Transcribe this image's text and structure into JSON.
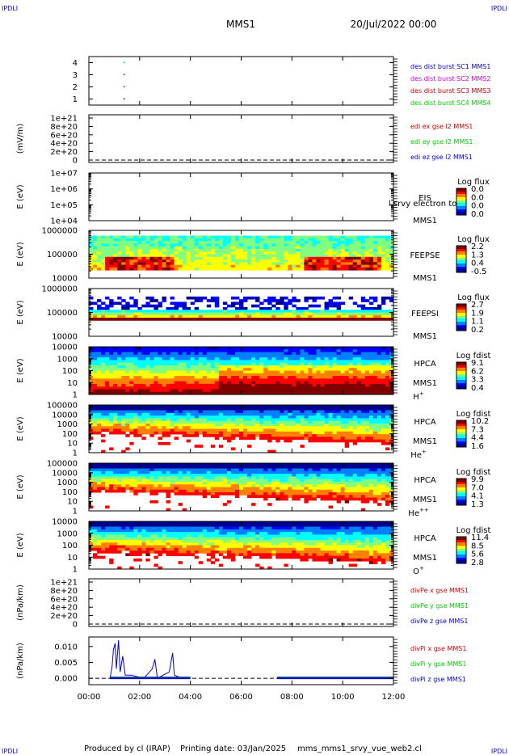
{
  "corner_marks": {
    "top_left": "IPDLI",
    "top_right": "IPDLI",
    "bottom_left": "IPDLI",
    "bottom_right": "IPDLI"
  },
  "header": {
    "mission": "MMS1",
    "date": "20/Jul/2022 00:00"
  },
  "footer": {
    "producer": "Produced by cl (IRAP)",
    "printing": "Printing date: 03/Jan/2025",
    "file": "mms_mms1_srvy_vue_web2.cl"
  },
  "colors": {
    "blue": "#0000cc",
    "magenta": "#cc00cc",
    "red": "#cc0000",
    "green": "#00cc00",
    "text": "#000000",
    "frame": "#000000"
  },
  "colormap": [
    "#00008f",
    "#0000ff",
    "#0080ff",
    "#00ffff",
    "#80ff80",
    "#ffff00",
    "#ff8000",
    "#ff0000",
    "#800000"
  ],
  "chart_data": {
    "type": "multi-panel time series (line + spectrogram)",
    "x": {
      "range": [
        "00:00",
        "12:00"
      ],
      "ticks": [
        "00:00",
        "02:00",
        "04:00",
        "06:00",
        "08:00",
        "10:00",
        "12:00"
      ]
    },
    "panels": [
      {
        "id": "burst",
        "type": "scatter",
        "ylabel": "",
        "yticks": [
          "4",
          "3",
          "2",
          "1"
        ],
        "ylim": [
          0.5,
          4.5
        ],
        "points": [
          {
            "t": "01:22",
            "y": 4,
            "color": "green"
          },
          {
            "t": "01:22",
            "y": 3,
            "color": "red"
          },
          {
            "t": "01:22",
            "y": 2,
            "color": "red"
          },
          {
            "t": "01:22",
            "y": 1,
            "color": "blue"
          }
        ],
        "legend": [
          {
            "text": "des dist burst SC1 MMS1",
            "color": "blue"
          },
          {
            "text": "des dist burst SC2 MMS2",
            "color": "magenta"
          },
          {
            "text": "des dist burst SC3 MMS3",
            "color": "red"
          },
          {
            "text": "des dist burst SC4 MMS4",
            "color": "green"
          }
        ]
      },
      {
        "id": "edi",
        "type": "line",
        "ylabel": "(mV/m)",
        "yticks": [
          "1e+21",
          "8e+20",
          "6e+20",
          "4e+20",
          "2e+20",
          "0"
        ],
        "ylim": [
          0,
          1e+21
        ],
        "zero_line": true,
        "legend": [
          {
            "text": "edi ex gse l2 MMS1",
            "color": "red"
          },
          {
            "text": "edi ey gse l2 MMS1",
            "color": "green"
          },
          {
            "text": "edi ez gse l2 MMS1",
            "color": "blue"
          }
        ]
      },
      {
        "id": "eis",
        "type": "heatmap",
        "ylabel": "E (eV)",
        "yticks": [
          "1e+07",
          "1e+06",
          "1e+05",
          "1e+04"
        ],
        "ylim": [
          10000.0,
          10000000.0
        ],
        "yscale": "log",
        "side_labels": [
          "EIS",
          "MMS1"
        ],
        "overlay_label": "l srvy electron to",
        "colorbar": {
          "title": "Log flux",
          "ticks": [
            "0.0",
            "0.0",
            "0.0",
            "0.0"
          ]
        }
      },
      {
        "id": "feeps_e",
        "type": "heatmap",
        "ylabel": "E (eV)",
        "yticks": [
          "1000000",
          "100000",
          "10000"
        ],
        "ylim": [
          10000.0,
          1000000.0
        ],
        "yscale": "log",
        "side_labels": [
          "FEEPSE",
          "MMS1"
        ],
        "colorbar": {
          "title": "Log flux",
          "ticks": [
            "2.2",
            "1.3",
            "0.4",
            "-0.5"
          ]
        }
      },
      {
        "id": "feeps_i",
        "type": "heatmap",
        "ylabel": "E (eV)",
        "yticks": [
          "1000000",
          "100000",
          "10000"
        ],
        "ylim": [
          10000.0,
          1000000.0
        ],
        "yscale": "log",
        "side_labels": [
          "FEEPSI",
          "MMS1"
        ],
        "colorbar": {
          "title": "Log flux",
          "ticks": [
            "2.7",
            "1.9",
            "1.1",
            "0.2"
          ]
        }
      },
      {
        "id": "hpca_h",
        "type": "heatmap",
        "ylabel": "E (eV)",
        "yticks": [
          "10000",
          "1000",
          "100",
          "10",
          "1"
        ],
        "ylim": [
          1,
          10000
        ],
        "yscale": "log",
        "side_labels": [
          "HPCA",
          "MMS1"
        ],
        "species": "H",
        "species_sup": "+",
        "colorbar": {
          "title": "Log fdist",
          "ticks": [
            "9.1",
            "6.2",
            "3.3",
            "0.4"
          ]
        }
      },
      {
        "id": "hpca_he",
        "type": "heatmap",
        "ylabel": "E (eV)",
        "yticks": [
          "100000",
          "10000",
          "1000",
          "100",
          "10",
          "1"
        ],
        "ylim": [
          1,
          100000
        ],
        "yscale": "log",
        "side_labels": [
          "HPCA",
          "MMS1"
        ],
        "species": "He",
        "species_sup": "+",
        "colorbar": {
          "title": "Log fdist",
          "ticks": [
            "10.2",
            "7.3",
            "4.4",
            "1.6"
          ]
        }
      },
      {
        "id": "hpca_he2",
        "type": "heatmap",
        "ylabel": "E (eV)",
        "yticks": [
          "100000",
          "10000",
          "1000",
          "100",
          "10",
          "1"
        ],
        "ylim": [
          1,
          100000
        ],
        "yscale": "log",
        "side_labels": [
          "HPCA",
          "MMS1"
        ],
        "species": "He",
        "species_sup": "++",
        "colorbar": {
          "title": "Log fdist",
          "ticks": [
            "9.9",
            "7.0",
            "4.1",
            "1.3"
          ]
        }
      },
      {
        "id": "hpca_o",
        "type": "heatmap",
        "ylabel": "E (eV)",
        "yticks": [
          "10000",
          "1000",
          "100",
          "10",
          "1"
        ],
        "ylim": [
          1,
          10000
        ],
        "yscale": "log",
        "side_labels": [
          "HPCA",
          "MMS1"
        ],
        "species": "O",
        "species_sup": "+",
        "colorbar": {
          "title": "Log fdist",
          "ticks": [
            "11.4",
            "8.5",
            "5.6",
            "2.8"
          ]
        }
      },
      {
        "id": "divpe",
        "type": "line",
        "ylabel": "(nPa/km)",
        "yticks": [
          "1e+21",
          "8e+20",
          "6e+20",
          "4e+20",
          "2e+20",
          "0"
        ],
        "ylim": [
          0,
          1e+21
        ],
        "zero_line": true,
        "legend": [
          {
            "text": "divPe x gse MMS1",
            "color": "red"
          },
          {
            "text": "divPe y gse MMS1",
            "color": "green"
          },
          {
            "text": "divPe z gse MMS1",
            "color": "blue"
          }
        ]
      },
      {
        "id": "divpi",
        "type": "line",
        "ylabel": "(nPa/km)",
        "yticks": [
          "0.010",
          "0.005",
          "0.000"
        ],
        "ylim": [
          -0.002,
          0.013
        ],
        "zero_line": true,
        "series_z": [
          {
            "t": "00:50",
            "y": 0.0
          },
          {
            "t": "00:55",
            "y": 0.004
          },
          {
            "t": "00:58",
            "y": 0.009
          },
          {
            "t": "01:02",
            "y": 0.011
          },
          {
            "t": "01:05",
            "y": 0.003
          },
          {
            "t": "01:10",
            "y": 0.012
          },
          {
            "t": "01:14",
            "y": 0.002
          },
          {
            "t": "01:20",
            "y": 0.007
          },
          {
            "t": "01:26",
            "y": 0.001
          },
          {
            "t": "01:40",
            "y": 0.001
          },
          {
            "t": "02:10",
            "y": 0.0
          },
          {
            "t": "02:30",
            "y": 0.003
          },
          {
            "t": "02:36",
            "y": 0.006
          },
          {
            "t": "02:42",
            "y": 0.0
          },
          {
            "t": "03:10",
            "y": 0.002
          },
          {
            "t": "03:18",
            "y": 0.008
          },
          {
            "t": "03:22",
            "y": 0.001
          },
          {
            "t": "03:40",
            "y": 0.0
          },
          {
            "t": "04:00",
            "y": 0.0
          }
        ],
        "segments": [
          [
            "00:50",
            "04:00"
          ],
          [
            "07:25",
            "12:00"
          ]
        ],
        "legend": [
          {
            "text": "divPi x gse MMS1",
            "color": "red"
          },
          {
            "text": "divPi y gse MMS1",
            "color": "green"
          },
          {
            "text": "divPi z gse MMS1",
            "color": "blue"
          }
        ]
      }
    ]
  }
}
